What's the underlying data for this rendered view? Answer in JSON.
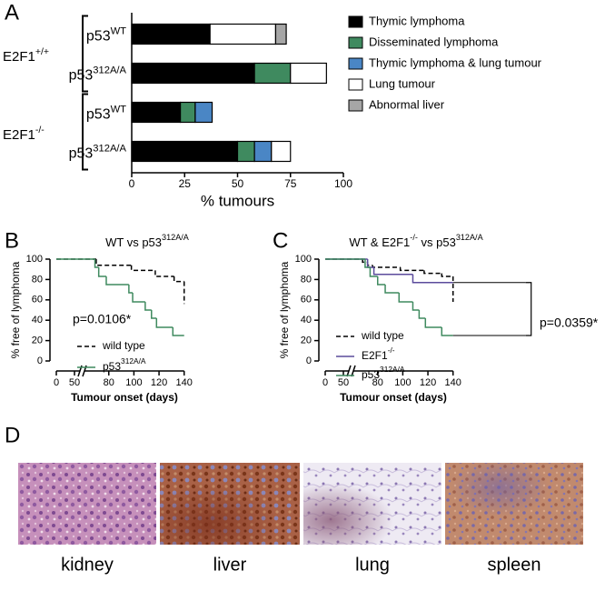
{
  "panel_labels": [
    "A",
    "B",
    "C",
    "D"
  ],
  "chart_data": [
    {
      "type": "bar",
      "orientation": "horizontal",
      "stacked": true,
      "xlabel": "% tumours",
      "groups": [
        [
          "E2F1",
          "+/+"
        ],
        [
          "E2F1",
          "-/-"
        ]
      ],
      "categories": [
        [
          "p53",
          "WT"
        ],
        [
          "p53",
          "312A/A"
        ],
        [
          "p53",
          "WT"
        ],
        [
          "p53",
          "312A/A"
        ]
      ],
      "xlim": [
        0,
        100
      ],
      "xticks": [
        0,
        25,
        50,
        75,
        100
      ],
      "series": [
        {
          "name": "Thymic lymphoma",
          "color": "#000000",
          "values": [
            37,
            58,
            23,
            50
          ]
        },
        {
          "name": "Disseminated lymphoma",
          "color": "#3f8a5f",
          "values": [
            0,
            17,
            7,
            8
          ]
        },
        {
          "name": "Thymic lymphoma & lung tumour",
          "color": "#4a86c5",
          "values": [
            0,
            0,
            8,
            8
          ]
        },
        {
          "name": "Lung tumour",
          "color": "#ffffff",
          "values": [
            31,
            17,
            0,
            9
          ]
        },
        {
          "name": "Abnormal liver",
          "color": "#a6a6a6",
          "values": [
            5,
            0,
            0,
            0
          ]
        }
      ]
    },
    {
      "type": "line",
      "step": true,
      "title": [
        "WT vs p53",
        "312A/A"
      ],
      "xlabel": "Tumour onset (days)",
      "ylabel": "% free of lymphoma",
      "xlim": [
        0,
        140
      ],
      "xbreak": [
        50,
        65
      ],
      "xticks": [
        0,
        50,
        80,
        100,
        120,
        140
      ],
      "ylim": [
        0,
        100
      ],
      "yticks": [
        0,
        20,
        40,
        60,
        80,
        100
      ],
      "annotation": "p=0.0106*",
      "series": [
        {
          "name": "wild type",
          "color": "#000000",
          "dashed": true,
          "x": [
            0,
            70,
            98,
            117,
            132,
            140
          ],
          "values": [
            100,
            94,
            89,
            83,
            78,
            56
          ]
        },
        {
          "name": [
            "p53",
            "312A/A"
          ],
          "color": "#3f8a5f",
          "dashed": false,
          "x": [
            0,
            69,
            72,
            78,
            96,
            99,
            109,
            114,
            118,
            131,
            140
          ],
          "values": [
            100,
            92,
            83,
            75,
            67,
            58,
            50,
            42,
            33,
            25,
            25
          ]
        }
      ]
    },
    {
      "type": "line",
      "step": true,
      "title": [
        "WT & E2F1",
        "-/-",
        " vs p53",
        "312A/A"
      ],
      "xlabel": "Tumour onset (days)",
      "ylabel": "% free of lymphoma",
      "xlim": [
        0,
        140
      ],
      "xbreak": [
        50,
        65
      ],
      "xticks": [
        0,
        50,
        80,
        100,
        120,
        140
      ],
      "ylim": [
        0,
        100
      ],
      "yticks": [
        0,
        20,
        40,
        60,
        80,
        100
      ],
      "annotation": "p=0.0359*",
      "series": [
        {
          "name": "wild type",
          "color": "#000000",
          "dashed": true,
          "x": [
            0,
            68,
            72,
            76,
            98,
            117,
            131,
            140
          ],
          "values": [
            100,
            97,
            94,
            92,
            89,
            86,
            83,
            58
          ]
        },
        {
          "name": [
            "E2F1",
            "-/-"
          ],
          "color": "#5b4b9c",
          "dashed": false,
          "x": [
            0,
            72,
            77,
            108,
            140
          ],
          "values": [
            100,
            92,
            85,
            77,
            77
          ]
        },
        {
          "name": [
            "p53",
            "312A/A"
          ],
          "color": "#3f8a5f",
          "dashed": false,
          "x": [
            0,
            70,
            74,
            80,
            86,
            97,
            108,
            113,
            118,
            131,
            140
          ],
          "values": [
            100,
            92,
            83,
            75,
            67,
            58,
            50,
            42,
            33,
            25,
            25
          ]
        }
      ]
    }
  ],
  "histology": [
    "kidney",
    "liver",
    "lung",
    "spleen"
  ]
}
